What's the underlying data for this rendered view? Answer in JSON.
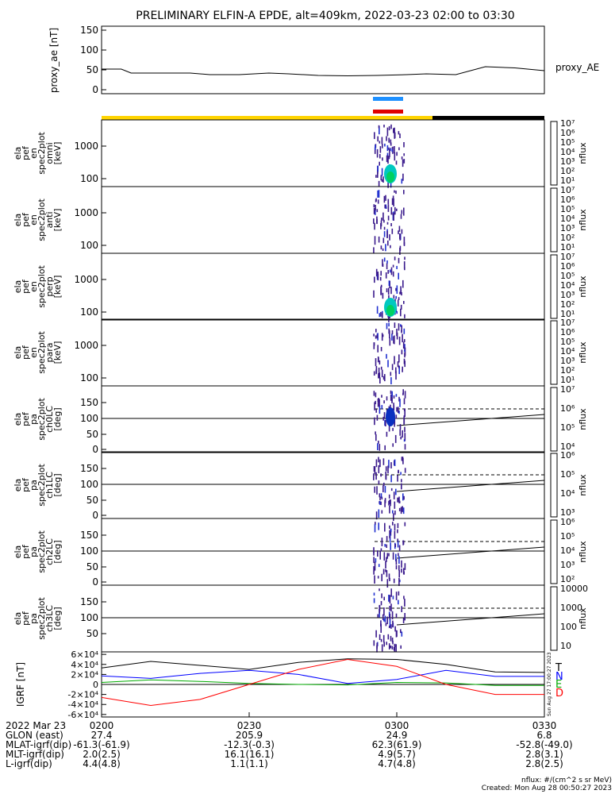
{
  "title": "PRELIMINARY ELFIN-A EPDE, alt=409km, 2022-03-23 02:00 to 03:30",
  "colors": {
    "yellow_bar": "#ffd400",
    "black_bar": "#000000",
    "blue_marker": "#1e90ff",
    "red_marker": "#e00000",
    "grf_T": "#000000",
    "grf_N": "#0000ff",
    "grf_E": "#00aa00",
    "grf_D": "#ff0000"
  },
  "time_axis": {
    "ticks": [
      "0200",
      "0230",
      "0300",
      "0330"
    ]
  },
  "chart_data": [
    {
      "type": "line",
      "name": "proxy_ae",
      "ylabel": "proxy_ae [nT]",
      "yticks": [
        "0",
        "50",
        "100",
        "150"
      ],
      "ylim": [
        -10,
        160
      ],
      "legend": "proxy_AE",
      "x": [
        0,
        4,
        6,
        12,
        18,
        22,
        28,
        34,
        38,
        44,
        50,
        56,
        62,
        66,
        72,
        78,
        84,
        90
      ],
      "y": [
        52,
        52,
        42,
        42,
        42,
        38,
        38,
        42,
        40,
        36,
        35,
        36,
        38,
        40,
        38,
        58,
        55,
        48
      ]
    },
    {
      "type": "heatmap",
      "name": "elapef en spec2plot omni",
      "ylabel": [
        "ela",
        "pef",
        "en",
        "spec2plot",
        "omni",
        "[keV]"
      ],
      "yticks": [
        "100",
        "1000"
      ],
      "colorbar": {
        "label": "nflux",
        "ticks": [
          "10⁷",
          "10⁶",
          "10⁵",
          "10⁴",
          "10³",
          "10²",
          "10¹"
        ]
      }
    },
    {
      "type": "heatmap",
      "name": "elapef en spec2plot anti",
      "ylabel": [
        "ela",
        "pef",
        "en",
        "spec2plot",
        "anti",
        "[keV]"
      ],
      "yticks": [
        "100",
        "1000"
      ],
      "colorbar": {
        "label": "nflux",
        "ticks": [
          "10⁷",
          "10⁶",
          "10⁵",
          "10⁴",
          "10³",
          "10²",
          "10¹"
        ]
      }
    },
    {
      "type": "heatmap",
      "name": "elapef en spec2plot perp",
      "ylabel": [
        "ela",
        "pef",
        "en",
        "spec2plot",
        "perp",
        "[keV]"
      ],
      "yticks": [
        "100",
        "1000"
      ],
      "colorbar": {
        "label": "nflux",
        "ticks": [
          "10⁷",
          "10⁶",
          "10⁵",
          "10⁴",
          "10³",
          "10²",
          "10¹"
        ]
      }
    },
    {
      "type": "heatmap",
      "name": "elapef en spec2plot para",
      "ylabel": [
        "ela",
        "pef",
        "en",
        "spec2plot",
        "para",
        "[keV]"
      ],
      "yticks": [
        "100",
        "1000"
      ],
      "colorbar": {
        "label": "nflux",
        "ticks": [
          "10⁷",
          "10⁶",
          "10⁵",
          "10⁴",
          "10³",
          "10²",
          "10¹"
        ]
      }
    },
    {
      "type": "heatmap",
      "name": "elapef pa spec2plot ch0LC",
      "ylabel": [
        "ela",
        "pef",
        "pa",
        "spec2plot",
        "ch0LC",
        "[deg]"
      ],
      "yticks": [
        "0",
        "50",
        "100",
        "150"
      ],
      "colorbar": {
        "label": "nflux",
        "ticks": [
          "10⁷",
          "10⁶",
          "10⁵",
          "10⁴"
        ]
      }
    },
    {
      "type": "heatmap",
      "name": "elapef pa spec2plot ch1LC",
      "ylabel": [
        "ela",
        "pef",
        "pa",
        "spec2plot",
        "ch1LC",
        "[deg]"
      ],
      "yticks": [
        "0",
        "50",
        "100",
        "150"
      ],
      "colorbar": {
        "label": "nflux",
        "ticks": [
          "10⁶",
          "10⁵",
          "10⁴",
          "10³"
        ]
      }
    },
    {
      "type": "heatmap",
      "name": "elapef pa spec2plot ch2LC",
      "ylabel": [
        "ela",
        "pef",
        "pa",
        "spec2plot",
        "ch2LC",
        "[deg]"
      ],
      "yticks": [
        "0",
        "50",
        "100",
        "150"
      ],
      "colorbar": {
        "label": "nflux",
        "ticks": [
          "10⁶",
          "10⁵",
          "10⁴",
          "10³",
          "10²"
        ]
      }
    },
    {
      "type": "heatmap",
      "name": "elapef pa spec2plot ch3LC",
      "ylabel": [
        "ela",
        "pef",
        "pa",
        "spec2plot",
        "ch3LC",
        "[deg]"
      ],
      "yticks": [
        "50",
        "100",
        "150"
      ],
      "colorbar": {
        "label": "nflux",
        "ticks": [
          "10000",
          "1000",
          "100",
          "10"
        ]
      }
    },
    {
      "type": "line",
      "name": "IGRF",
      "ylabel": "IGRF [nT]",
      "yticks": [
        "-6×10⁴",
        "-4×10⁴",
        "-2×10⁴",
        "0",
        "2×10⁴",
        "4×10⁴",
        "6×10⁴"
      ],
      "ylim": [
        -65000,
        65000
      ],
      "legend": [
        "T",
        "N",
        "E",
        "D"
      ],
      "series": [
        {
          "name": "T",
          "x": [
            0,
            10,
            20,
            30,
            40,
            50,
            60,
            70,
            80,
            90
          ],
          "y": [
            33000,
            46000,
            38000,
            30000,
            44000,
            51000,
            50000,
            40000,
            25000,
            24000
          ]
        },
        {
          "name": "N",
          "x": [
            0,
            10,
            20,
            30,
            40,
            50,
            60,
            70,
            80,
            90
          ],
          "y": [
            17000,
            12000,
            22000,
            28000,
            20000,
            2000,
            10000,
            28000,
            16000,
            16000
          ]
        },
        {
          "name": "E",
          "x": [
            0,
            10,
            20,
            30,
            40,
            50,
            60,
            70,
            80,
            90
          ],
          "y": [
            4000,
            9000,
            6000,
            2000,
            0,
            -1000,
            4000,
            3000,
            -2000,
            -2000
          ]
        },
        {
          "name": "D",
          "x": [
            0,
            10,
            20,
            30,
            40,
            50,
            60,
            70,
            80,
            90
          ],
          "y": [
            -26000,
            -42000,
            -30000,
            0,
            30000,
            50000,
            36000,
            0,
            -20000,
            -20000
          ]
        }
      ],
      "side_stamp": "Sun Aug 27 17:00:27 2023"
    }
  ],
  "bottom_table": {
    "rows": [
      {
        "label": "2022 Mar 23",
        "values": [
          "0200",
          "0230",
          "0300",
          "0330"
        ]
      },
      {
        "label": "GLON (east)",
        "values": [
          "27.4",
          "205.9",
          "24.9",
          "6.8"
        ]
      },
      {
        "label": "MLAT-igrf(dip)",
        "values": [
          "-61.3(-61.9)",
          "-12.3(-0.3)",
          "62.3(61.9)",
          "-52.8(-49.0)"
        ]
      },
      {
        "label": "MLT-igrf(dip)",
        "values": [
          "2.0(2.5)",
          "16.1(16.1)",
          "4.9(5.7)",
          "2.8(3.1)"
        ]
      },
      {
        "label": "L-igrf(dip)",
        "values": [
          "4.4(4.8)",
          "1.1(1.1)",
          "4.7(4.8)",
          "2.8(2.5)"
        ]
      }
    ]
  },
  "footer": {
    "units": "nflux: #/(cm^2 s sr MeV)",
    "created": "Created: Mon Aug 28 00:50:27 2023"
  }
}
